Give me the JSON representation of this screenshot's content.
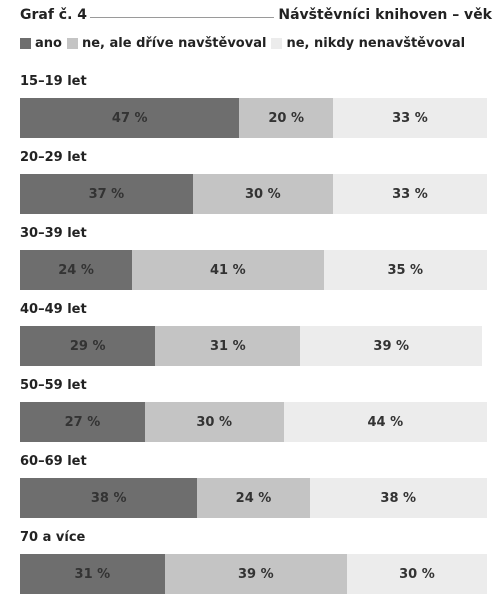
{
  "header": {
    "graf_label": "Graf č. 4",
    "title": "Návštěvníci knihoven – věk"
  },
  "chart_data": {
    "type": "bar",
    "orientation": "horizontal-stacked-100",
    "title": "Návštěvníci knihoven – věk",
    "categories": [
      "15–19 let",
      "20–29 let",
      "30–39 let",
      "40–49 let",
      "50–59 let",
      "60–69 let",
      "70 a více"
    ],
    "series": [
      {
        "name": "ano",
        "color": "#6e6e6e",
        "values": [
          47,
          37,
          24,
          29,
          27,
          38,
          31
        ]
      },
      {
        "name": "ne, ale dříve navštěvoval",
        "color": "#c4c4c4",
        "values": [
          20,
          30,
          41,
          31,
          30,
          24,
          39
        ]
      },
      {
        "name": "ne, nikdy nenavštěvoval",
        "color": "#ececec",
        "values": [
          33,
          33,
          35,
          39,
          44,
          38,
          30
        ]
      }
    ],
    "unit": "%",
    "xlim": [
      0,
      100
    ],
    "legend_position": "top",
    "grid": false
  }
}
